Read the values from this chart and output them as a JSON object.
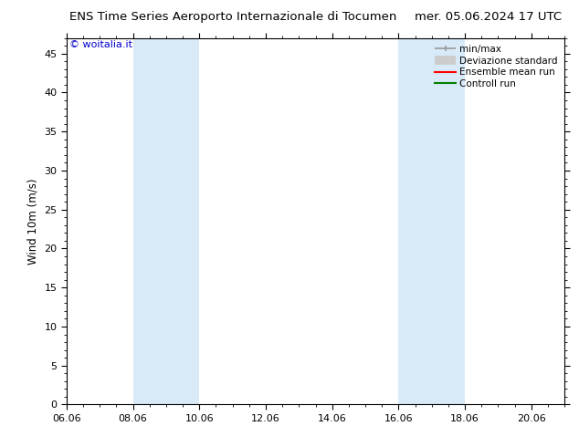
{
  "title_left": "ENS Time Series Aeroporto Internazionale di Tocumen",
  "title_right": "mer. 05.06.2024 17 UTC",
  "ylabel": "Wind 10m (m/s)",
  "xlabel": "",
  "background_color": "#ffffff",
  "plot_bg_color": "#ffffff",
  "shaded_bands": [
    {
      "x_start": 8.0,
      "x_end": 10.0,
      "color": "#d8eaf8"
    },
    {
      "x_start": 16.0,
      "x_end": 18.0,
      "color": "#d8eaf8"
    }
  ],
  "xlim": [
    6.0,
    21.0
  ],
  "ylim": [
    0,
    47
  ],
  "yticks": [
    0,
    5,
    10,
    15,
    20,
    25,
    30,
    35,
    40,
    45
  ],
  "xtick_labels": [
    "06.06",
    "08.06",
    "10.06",
    "12.06",
    "14.06",
    "16.06",
    "18.06",
    "20.06"
  ],
  "xtick_positions": [
    6.0,
    8.0,
    10.0,
    12.0,
    14.0,
    16.0,
    18.0,
    20.0
  ],
  "legend_items": [
    {
      "label": "min/max",
      "color": "#999999",
      "lw": 1.2,
      "ls": "-"
    },
    {
      "label": "Deviazione standard",
      "color": "#cccccc",
      "lw": 7,
      "ls": "-"
    },
    {
      "label": "Ensemble mean run",
      "color": "#ff0000",
      "lw": 1.5,
      "ls": "-"
    },
    {
      "label": "Controll run",
      "color": "#008000",
      "lw": 1.5,
      "ls": "-"
    }
  ],
  "watermark": "© woitalia.it",
  "watermark_color": "#0000cc",
  "title_fontsize": 9.5,
  "axis_fontsize": 8.5,
  "tick_fontsize": 8,
  "legend_fontsize": 7.5
}
